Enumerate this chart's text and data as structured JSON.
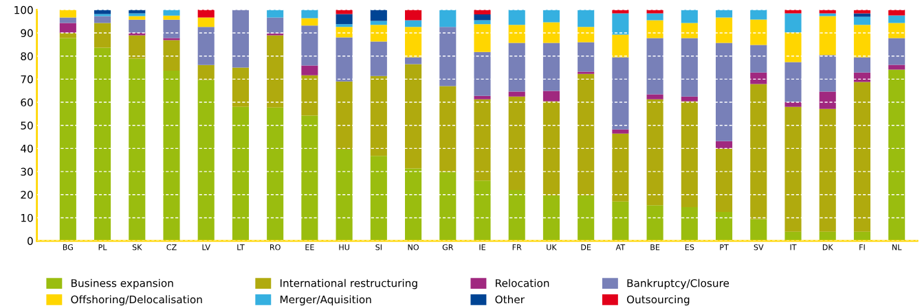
{
  "chart_data": {
    "type": "bar",
    "stacked": true,
    "categories": [
      "BG",
      "PL",
      "SK",
      "CZ",
      "LV",
      "LT",
      "RO",
      "EE",
      "HU",
      "SI",
      "NO",
      "GR",
      "IE",
      "FR",
      "UK",
      "DE",
      "AT",
      "BE",
      "ES",
      "PT",
      "SV",
      "IT",
      "DK",
      "FI",
      "NL"
    ],
    "series": [
      {
        "name": "Business expansion",
        "color": "#9abd0f",
        "values": [
          87.8,
          83.6,
          78.9,
          73.7,
          69.7,
          58.0,
          57.7,
          54.2,
          39.5,
          36.8,
          31.4,
          29.9,
          26.1,
          22.0,
          19.6,
          19.6,
          17.0,
          15.4,
          14.6,
          12.5,
          9.4,
          4.0,
          4.0,
          4.0,
          74.1
        ]
      },
      {
        "name": "International restructuring",
        "color": "#b0aa0e",
        "values": [
          2.3,
          10.7,
          10.1,
          13.2,
          6.4,
          17.0,
          31.3,
          17.5,
          29.5,
          34.6,
          45.1,
          37.1,
          35.2,
          40.5,
          40.8,
          52.7,
          29.4,
          45.9,
          45.8,
          27.4,
          58.5,
          54.0,
          53.1,
          64.8,
          0
        ]
      },
      {
        "name": "Relocation",
        "color": "#a0287f",
        "values": [
          4.2,
          0,
          1.1,
          0.9,
          0,
          0,
          0.9,
          4.2,
          0,
          0,
          0,
          0,
          1.5,
          2.1,
          4.5,
          0.9,
          1.8,
          2.1,
          2.1,
          3.3,
          5.0,
          2.1,
          7.5,
          4.1,
          2.1
        ]
      },
      {
        "name": "Bankruptcy/Closure",
        "color": "#7880b8",
        "values": [
          2.4,
          3.0,
          5.6,
          7.9,
          16.5,
          25.0,
          6.8,
          17.3,
          19.1,
          14.9,
          3.0,
          25.6,
          19.0,
          21.1,
          20.8,
          12.8,
          31.3,
          24.4,
          25.3,
          42.5,
          11.9,
          17.3,
          15.8,
          6.6,
          11.6
        ]
      },
      {
        "name": "Offshoring/Delocalisation",
        "color": "#ffd600",
        "values": [
          3.3,
          0,
          1.6,
          1.8,
          4.1,
          0,
          0,
          3.2,
          4.5,
          7.2,
          13.1,
          0,
          12.0,
          7.8,
          8.9,
          6.6,
          9.8,
          7.7,
          6.5,
          11.0,
          11.0,
          12.8,
          16.9,
          14.0,
          6.5
        ]
      },
      {
        "name": "Merger/Aquisition",
        "color": "#35b0e0",
        "values": [
          0,
          0.9,
          1.2,
          2.5,
          0,
          0,
          3.3,
          3.6,
          1.2,
          1.7,
          2.9,
          7.4,
          1.7,
          6.5,
          5.4,
          7.4,
          9.2,
          3.0,
          5.7,
          3.3,
          4.2,
          8.3,
          1.2,
          3.5,
          3.3
        ]
      },
      {
        "name": "Other",
        "color": "#004494",
        "values": [
          0,
          1.8,
          1.5,
          0,
          0,
          0,
          0,
          0,
          4.4,
          4.8,
          0,
          0,
          2.5,
          0,
          0,
          0,
          0,
          0,
          0,
          0,
          0,
          0,
          0,
          1.5,
          0
        ]
      },
      {
        "name": "Outsourcing",
        "color": "#e2001a",
        "values": [
          0,
          0,
          0,
          0,
          3.4,
          0,
          0,
          0,
          1.8,
          0,
          4.5,
          0,
          2.0,
          0,
          0,
          0,
          1.5,
          1.5,
          0,
          0,
          0,
          1.5,
          1.5,
          1.5,
          2.4
        ]
      }
    ],
    "ylim": [
      0,
      100
    ],
    "yticks": [
      0,
      10,
      20,
      30,
      40,
      50,
      60,
      70,
      80,
      90,
      100
    ],
    "grid": "y",
    "legend": "bottom"
  }
}
